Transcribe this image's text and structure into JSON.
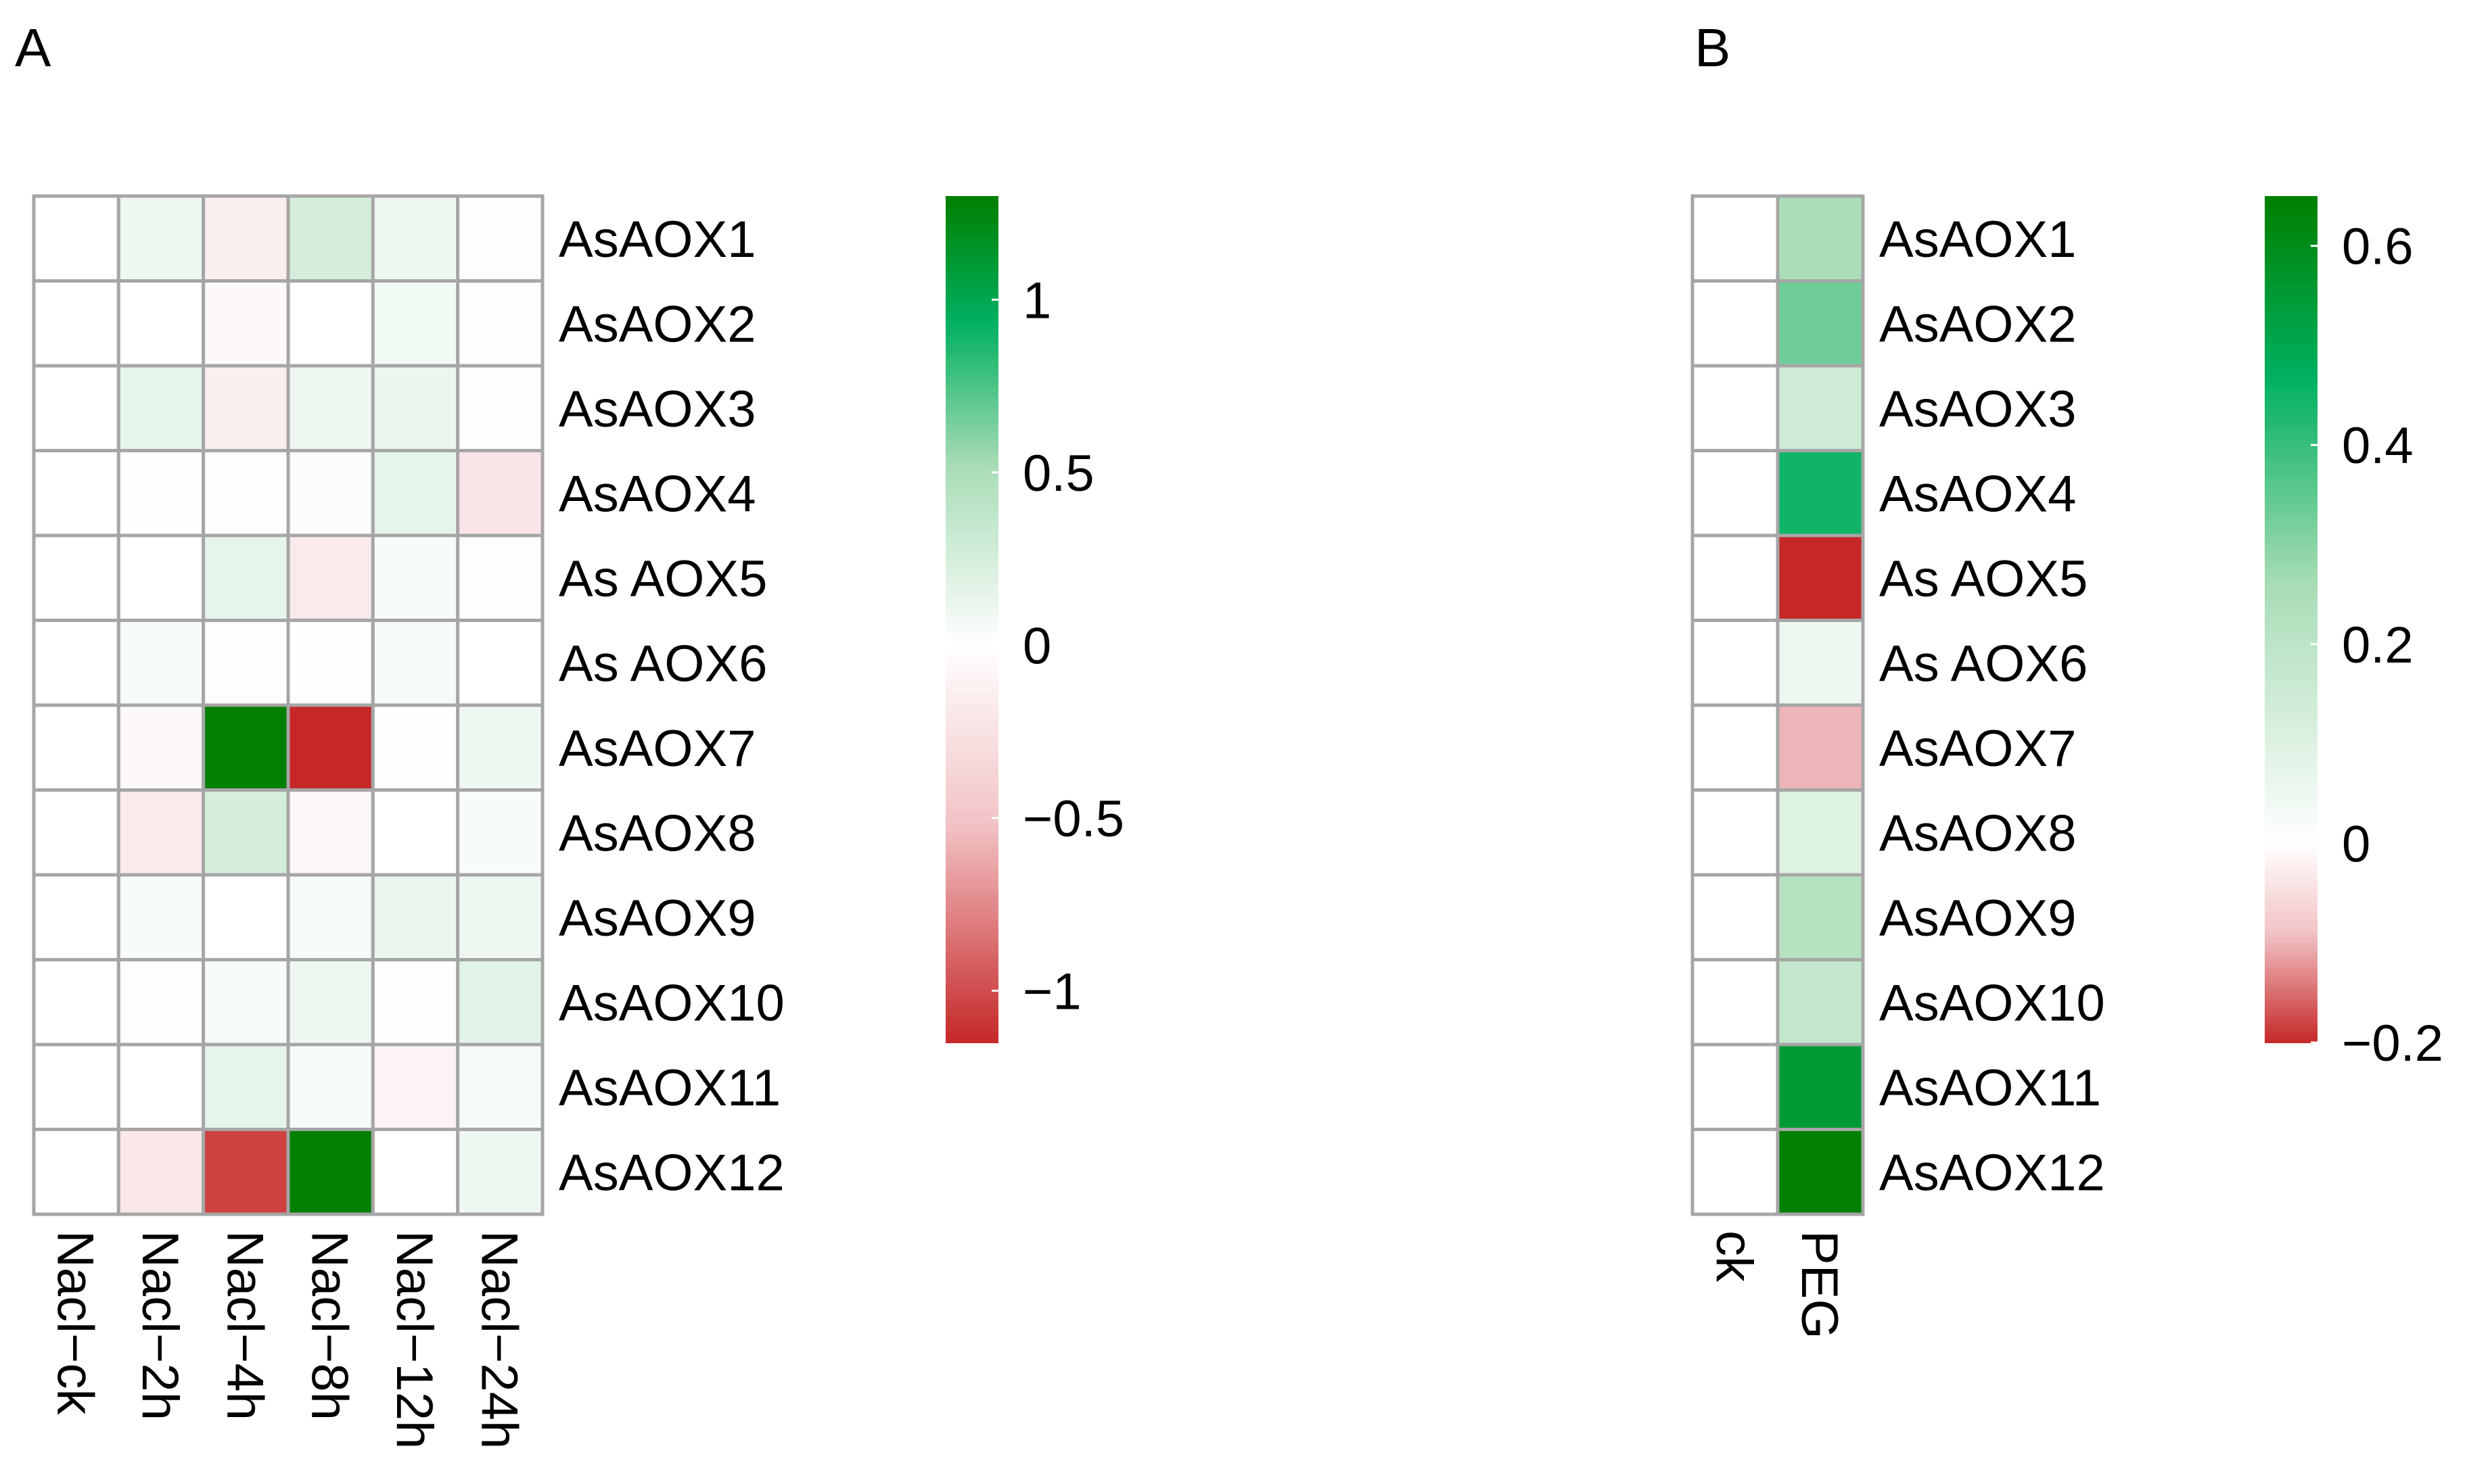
{
  "chart_data": [
    {
      "panel_label": "A",
      "type": "heatmap",
      "columns": [
        "Nacl−ck",
        "Nacl−2h",
        "Nacl−4h",
        "Nacl−8h",
        "Nacl−12h",
        "Nacl−24h"
      ],
      "rows": [
        "AsAOX1",
        "AsAOX2",
        "AsAOX3",
        "AsAOX4",
        "As AOX5",
        "As AOX6",
        "AsAOX7",
        "AsAOX8",
        "AsAOX9",
        "AsAOX10",
        "AsAOX11",
        "AsAOX12"
      ],
      "values": [
        [
          0,
          0.1,
          -0.15,
          0.25,
          0.1,
          0.02
        ],
        [
          0,
          0.0,
          -0.05,
          0.0,
          0.08,
          -0.03
        ],
        [
          0,
          0.15,
          -0.15,
          0.1,
          0.12,
          -0.03
        ],
        [
          0,
          0.01,
          -0.03,
          0.03,
          0.15,
          -0.22
        ],
        [
          0,
          0.0,
          0.15,
          -0.18,
          0.05,
          -0.03
        ],
        [
          0,
          0.05,
          -0.02,
          0.01,
          0.06,
          0.0
        ],
        [
          0,
          -0.05,
          1.3,
          -1.15,
          -0.01,
          0.1
        ],
        [
          0,
          -0.18,
          0.25,
          -0.07,
          0.0,
          0.05
        ],
        [
          0,
          0.05,
          0.0,
          0.06,
          0.12,
          0.1
        ],
        [
          0,
          0.02,
          0.05,
          0.1,
          0.02,
          0.18
        ],
        [
          0,
          0.0,
          0.15,
          0.04,
          -0.1,
          0.06
        ],
        [
          0,
          -0.2,
          -1.05,
          1.3,
          0.0,
          0.1
        ]
      ],
      "legend": {
        "ticks": [
          1,
          0.5,
          0,
          -0.5,
          -1
        ],
        "tick_labels": [
          "1",
          "0.5",
          "0",
          "−0.5",
          "−1"
        ],
        "range": [
          -1.15,
          1.3
        ]
      },
      "colors": {
        "low": "#c62828",
        "mid_low": "#f2c3c6",
        "zero": "#ffffff",
        "mid_high": "#a8dcb6",
        "bright": "#00b060",
        "high": "#007f00",
        "cell_border": "#a6a6a6"
      },
      "grid": true,
      "legend_position": "right"
    },
    {
      "panel_label": "B",
      "type": "heatmap",
      "columns": [
        "ck",
        "PEG"
      ],
      "rows": [
        "AsAOX1",
        "AsAOX2",
        "AsAOX3",
        "AsAOX4",
        "As AOX5",
        "As AOX6",
        "AsAOX7",
        "AsAOX8",
        "AsAOX9",
        "AsAOX10",
        "AsAOX11",
        "AsAOX12"
      ],
      "values": [
        [
          0,
          0.25
        ],
        [
          0,
          0.33
        ],
        [
          0,
          0.15
        ],
        [
          0,
          0.45
        ],
        [
          0,
          -0.2
        ],
        [
          0,
          0.05
        ],
        [
          0,
          -0.1
        ],
        [
          0,
          0.1
        ],
        [
          0,
          0.22
        ],
        [
          0,
          0.18
        ],
        [
          0,
          0.55
        ],
        [
          0,
          0.65
        ]
      ],
      "legend": {
        "ticks": [
          0.6,
          0.4,
          0.2,
          0,
          -0.2
        ],
        "tick_labels": [
          "0.6",
          "0.4",
          "0.2",
          "0",
          "−0.2"
        ],
        "range": [
          -0.2,
          0.65
        ]
      },
      "colors": {
        "low": "#c62828",
        "mid_low": "#f2c3c6",
        "zero": "#ffffff",
        "mid_high": "#a8dcb6",
        "bright": "#00b060",
        "high": "#007f00",
        "cell_border": "#a6a6a6"
      },
      "grid": true,
      "legend_position": "right"
    }
  ]
}
